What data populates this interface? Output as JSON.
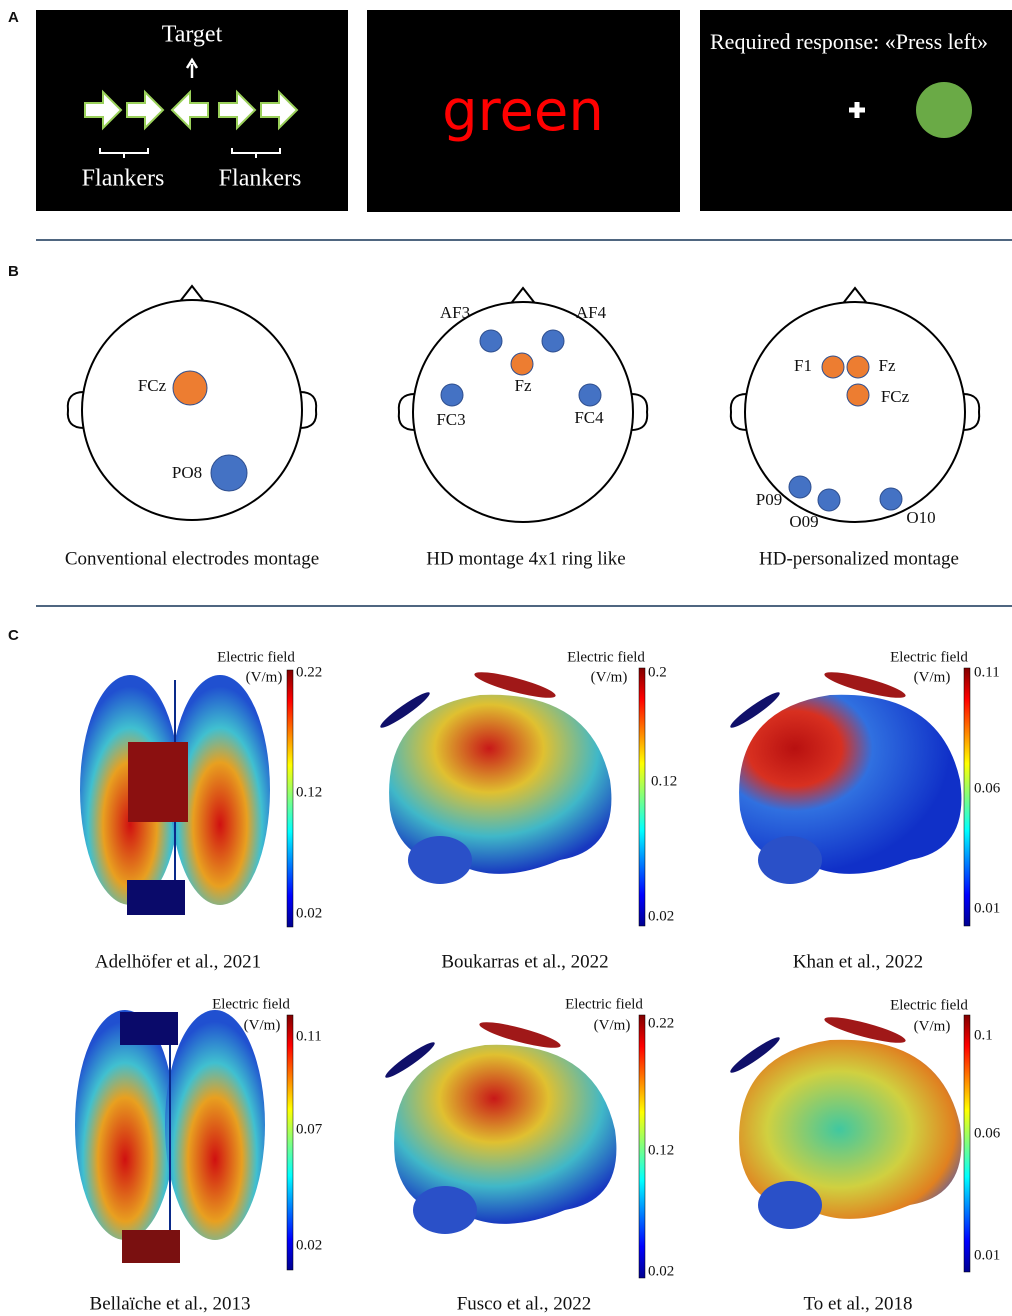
{
  "panel_labels": [
    "A",
    "B",
    "C"
  ],
  "panel_a": {
    "target": "Target",
    "flankers": [
      "Flankers",
      "Flankers"
    ],
    "word": "green",
    "response": "Required response: «Press left»"
  },
  "panel_b": {
    "montages": [
      {
        "caption": "Conventional electrodes montage",
        "electrodes": [
          "FCz",
          "PO8"
        ]
      },
      {
        "caption": "HD montage 4x1 ring like",
        "electrodes": [
          "AF3",
          "AF4",
          "Fz",
          "FC3",
          "FC4"
        ]
      },
      {
        "caption": "HD-personalized montage",
        "electrodes": [
          "F1",
          "Fz",
          "FCz",
          "P09",
          "O09",
          "O10"
        ]
      }
    ]
  },
  "panel_c": {
    "simulations": [
      {
        "colorbar_title": "Electric field",
        "colorbar_unit": "(V/m)",
        "ticks": [
          "0.22",
          "0.12",
          "0.02"
        ],
        "citation": "Adelhöfer et al., 2021"
      },
      {
        "colorbar_title": "Electric field",
        "colorbar_unit": "(V/m)",
        "ticks": [
          "0.2",
          "0.12",
          "0.02"
        ],
        "citation": "Boukarras et al., 2022"
      },
      {
        "colorbar_title": "Electric field",
        "colorbar_unit": "(V/m)",
        "ticks": [
          "0.11",
          "0.06",
          "0.01"
        ],
        "citation": "Khan et al., 2022"
      },
      {
        "colorbar_title": "Electric field",
        "colorbar_unit": "(V/m)",
        "ticks": [
          "0.11",
          "0.07",
          "0.02"
        ],
        "citation": "Bellaïche et al., 2013"
      },
      {
        "colorbar_title": "Electric field",
        "colorbar_unit": "(V/m)",
        "ticks": [
          "0.22",
          "0.12",
          "0.02"
        ],
        "citation": "Fusco et al., 2022"
      },
      {
        "colorbar_title": "Electric field",
        "colorbar_unit": "(V/m)",
        "ticks": [
          "0.1",
          "0.06",
          "0.01"
        ],
        "citation": "To et al., 2018"
      }
    ]
  }
}
